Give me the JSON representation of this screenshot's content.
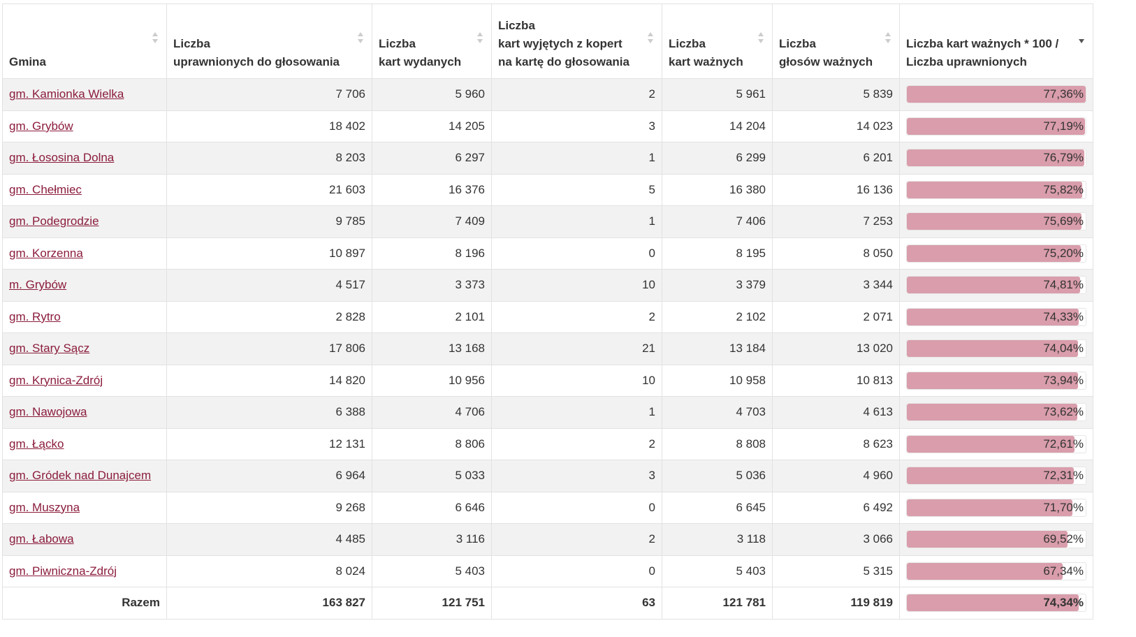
{
  "table": {
    "headers": [
      [
        "Gmina"
      ],
      [
        "Liczba",
        "uprawnionych do głosowania"
      ],
      [
        "Liczba",
        "kart wydanych"
      ],
      [
        "Liczba",
        "kart wyjętych z kopert",
        "na kartę do głosowania"
      ],
      [
        "Liczba",
        "kart ważnych"
      ],
      [
        "Liczba",
        "głosów ważnych"
      ],
      [
        "Liczba kart ważnych * 100 /",
        "Liczba uprawnionych"
      ]
    ],
    "rows": [
      {
        "gmina": "gm. Kamionka Wielka",
        "cells": [
          "7 706",
          "5 960",
          "2",
          "5 961",
          "5 839"
        ],
        "pct": {
          "value": 77.36,
          "label": "77,36%"
        }
      },
      {
        "gmina": "gm. Grybów",
        "cells": [
          "18 402",
          "14 205",
          "3",
          "14 204",
          "14 023"
        ],
        "pct": {
          "value": 77.19,
          "label": "77,19%"
        }
      },
      {
        "gmina": "gm. Łososina Dolna",
        "cells": [
          "8 203",
          "6 297",
          "1",
          "6 299",
          "6 201"
        ],
        "pct": {
          "value": 76.79,
          "label": "76,79%"
        }
      },
      {
        "gmina": "gm. Chełmiec",
        "cells": [
          "21 603",
          "16 376",
          "5",
          "16 380",
          "16 136"
        ],
        "pct": {
          "value": 75.82,
          "label": "75,82%"
        }
      },
      {
        "gmina": "gm. Podegrodzie",
        "cells": [
          "9 785",
          "7 409",
          "1",
          "7 406",
          "7 253"
        ],
        "pct": {
          "value": 75.69,
          "label": "75,69%"
        }
      },
      {
        "gmina": "gm. Korzenna",
        "cells": [
          "10 897",
          "8 196",
          "0",
          "8 195",
          "8 050"
        ],
        "pct": {
          "value": 75.2,
          "label": "75,20%"
        }
      },
      {
        "gmina": "m. Grybów",
        "cells": [
          "4 517",
          "3 373",
          "10",
          "3 379",
          "3 344"
        ],
        "pct": {
          "value": 74.81,
          "label": "74,81%"
        }
      },
      {
        "gmina": "gm. Rytro",
        "cells": [
          "2 828",
          "2 101",
          "2",
          "2 102",
          "2 071"
        ],
        "pct": {
          "value": 74.33,
          "label": "74,33%"
        }
      },
      {
        "gmina": "gm. Stary Sącz",
        "cells": [
          "17 806",
          "13 168",
          "21",
          "13 184",
          "13 020"
        ],
        "pct": {
          "value": 74.04,
          "label": "74,04%"
        }
      },
      {
        "gmina": "gm. Krynica-Zdrój",
        "cells": [
          "14 820",
          "10 956",
          "10",
          "10 958",
          "10 813"
        ],
        "pct": {
          "value": 73.94,
          "label": "73,94%"
        }
      },
      {
        "gmina": "gm. Nawojowa",
        "cells": [
          "6 388",
          "4 706",
          "1",
          "4 703",
          "4 613"
        ],
        "pct": {
          "value": 73.62,
          "label": "73,62%"
        }
      },
      {
        "gmina": "gm. Łącko",
        "cells": [
          "12 131",
          "8 806",
          "2",
          "8 808",
          "8 623"
        ],
        "pct": {
          "value": 72.61,
          "label": "72,61%"
        }
      },
      {
        "gmina": "gm. Gródek nad Dunajcem",
        "cells": [
          "6 964",
          "5 033",
          "3",
          "5 036",
          "4 960"
        ],
        "pct": {
          "value": 72.31,
          "label": "72,31%"
        }
      },
      {
        "gmina": "gm. Muszyna",
        "cells": [
          "9 268",
          "6 646",
          "0",
          "6 645",
          "6 492"
        ],
        "pct": {
          "value": 71.7,
          "label": "71,70%"
        }
      },
      {
        "gmina": "gm. Łabowa",
        "cells": [
          "4 485",
          "3 116",
          "2",
          "3 118",
          "3 066"
        ],
        "pct": {
          "value": 69.52,
          "label": "69,52%"
        }
      },
      {
        "gmina": "gm. Piwniczna-Zdrój",
        "cells": [
          "8 024",
          "5 403",
          "0",
          "5 403",
          "5 315"
        ],
        "pct": {
          "value": 67.34,
          "label": "67,34%"
        }
      }
    ],
    "total": {
      "label": "Razem",
      "cells": [
        "163 827",
        "121 751",
        "63",
        "121 781",
        "119 819"
      ],
      "pct": {
        "value": 74.34,
        "label": "74,34%"
      }
    }
  }
}
